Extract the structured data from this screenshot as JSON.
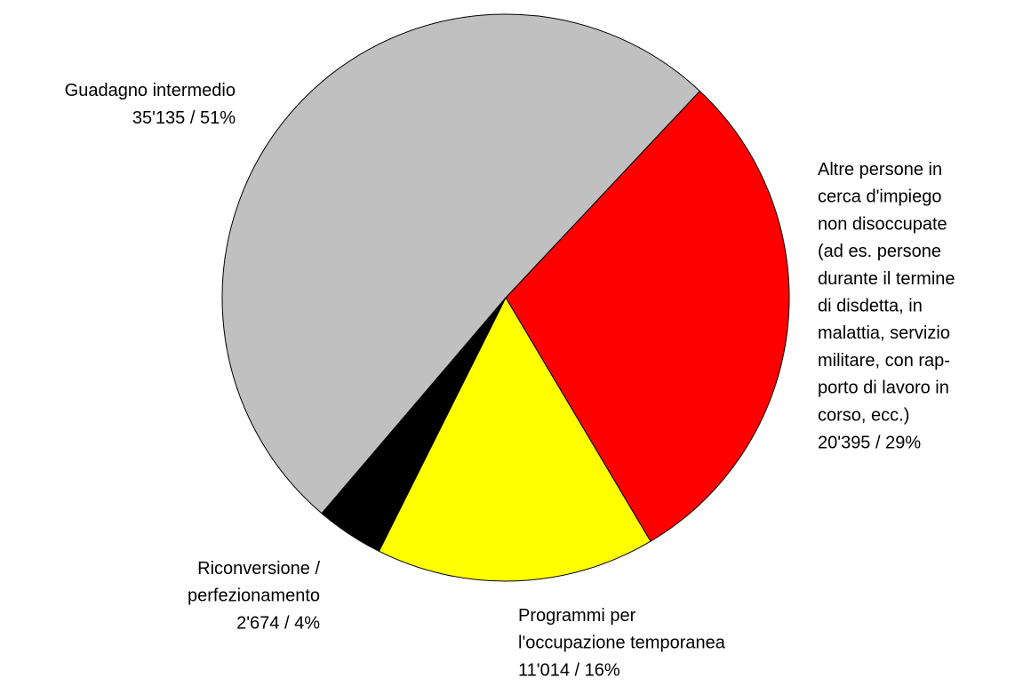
{
  "chart_data": {
    "type": "pie",
    "categories": [
      "Altre persone in\ncerca d'impiego\nnon disoccupate\n(ad es. persone\ndurante il termine\ndi disdetta, in\nmalattia, servizio\nmilitare, con rap-\nporto di lavoro in\ncorso, ecc.)",
      "Programmi per\nl'occupazione temporanea",
      "Riconversione /\nperfezionamento",
      "Guadagno intermedio"
    ],
    "values": [
      20395,
      11014,
      2674,
      35135
    ],
    "value_labels": [
      "20'395 / 29%",
      "11'014 / 16%",
      "2'674 / 4%",
      "35'135 / 51%"
    ],
    "colors": [
      "#ff0000",
      "#ffff00",
      "#000000",
      "#c0c0c0"
    ]
  }
}
